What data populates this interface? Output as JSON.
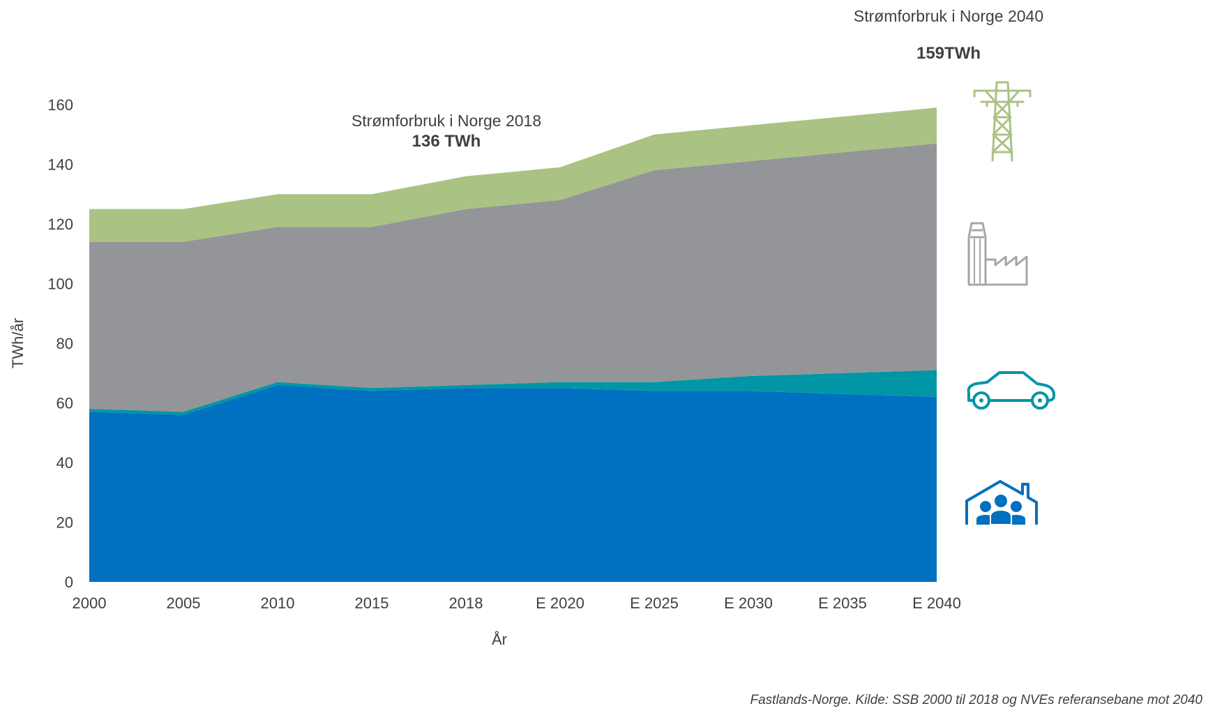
{
  "chart_data": {
    "type": "area",
    "stacked": true,
    "categories": [
      "2000",
      "2005",
      "2010",
      "2015",
      "2018",
      "E 2020",
      "E 2025",
      "E 2030",
      "E 2035",
      "E 2040"
    ],
    "series": [
      {
        "name": "Husholdninger og tjenesteyting",
        "icon": "house-family-icon",
        "color": "#0070C0",
        "values": [
          57,
          56,
          66,
          64,
          65,
          65,
          64,
          64,
          63,
          62
        ]
      },
      {
        "name": "Transport",
        "icon": "car-icon",
        "color": "#0096A6",
        "values": [
          1,
          1,
          1,
          1,
          1,
          2,
          3,
          5,
          7,
          9
        ]
      },
      {
        "name": "Industri",
        "icon": "factory-icon",
        "color": "#939598",
        "values": [
          56,
          57,
          52,
          54,
          59,
          61,
          71,
          72,
          74,
          76
        ]
      },
      {
        "name": "Nett og kraftproduksjon",
        "icon": "power-pylon-icon",
        "color": "#AAC283",
        "values": [
          11,
          11,
          11,
          11,
          11,
          11,
          12,
          12,
          12,
          12
        ]
      }
    ],
    "xlabel": "År",
    "ylabel": "TWh/år",
    "ylim": [
      0,
      160
    ],
    "yticks": [
      0,
      20,
      40,
      60,
      80,
      100,
      120,
      140,
      160
    ],
    "grid": false,
    "annotations": [
      {
        "title": "Strømforbruk i Norge 2018",
        "value": "136 TWh"
      },
      {
        "title": "Strømforbruk i Norge 2040",
        "value": "159TWh"
      }
    ],
    "source": "Fastlands-Norge. Kilde: SSB 2000 til 2018 og NVEs referansebane mot 2040"
  }
}
